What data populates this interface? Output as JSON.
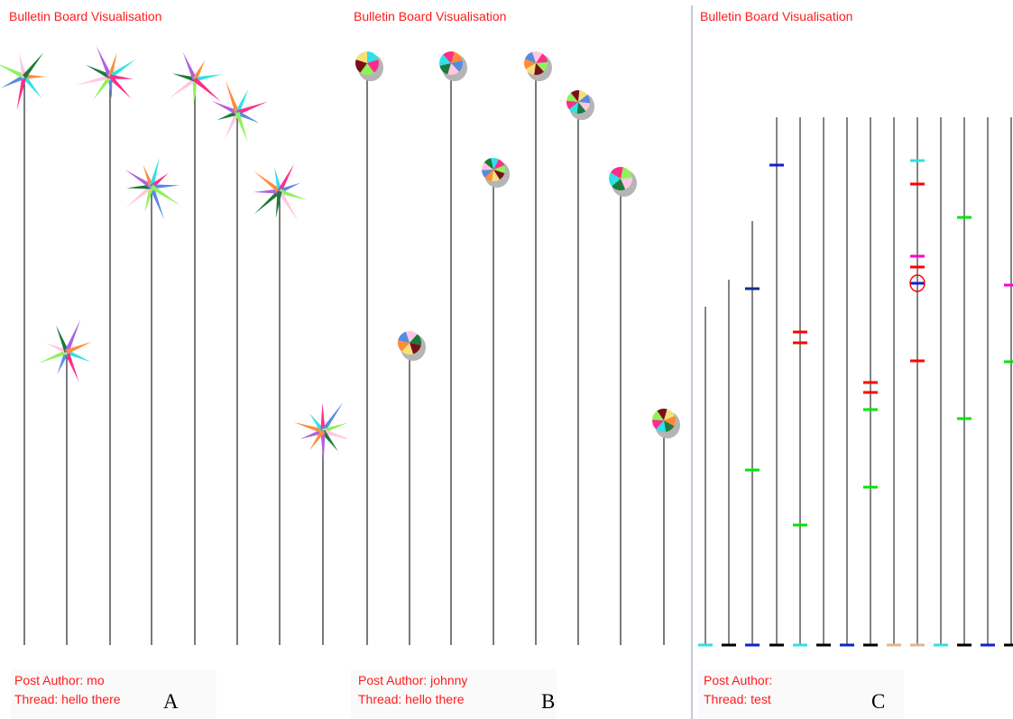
{
  "panels": [
    {
      "id": "A",
      "title": "Bulletin Board Visualisation",
      "author_label": "Post Author: mo",
      "thread_label": "Thread: hello there",
      "letter": "A",
      "glyph": "star-burst",
      "colors": [
        "#ff8c3a",
        "#30e0e8",
        "#ff2d8a",
        "#5a8ae0",
        "#8ef25a",
        "#ffc8e0",
        "#1e7a3a",
        "#b060e0"
      ]
    },
    {
      "id": "B",
      "title": "Bulletin Board Visualisation",
      "author_label": "Post Author: johnny",
      "thread_label": "Thread: hello there",
      "letter": "B",
      "glyph": "pie-chart",
      "colors": [
        "#30e0e8",
        "#ff8c3a",
        "#ff2d8a",
        "#5a8ae0",
        "#8ef25a",
        "#ffc8e0",
        "#7a0f1a",
        "#1e7a3a",
        "#f5e07a"
      ]
    },
    {
      "id": "C",
      "title": "Bulletin Board Visualisation",
      "author_label": "Post Author:",
      "thread_label": "Thread: test",
      "letter": "C",
      "glyph": "tick-marks",
      "colors": [
        "#ff0000",
        "#00e600",
        "#1020d0",
        "#ff00cc",
        "#30e0e0",
        "#000000",
        "#e0b890",
        "#0c2e8a"
      ]
    }
  ]
}
